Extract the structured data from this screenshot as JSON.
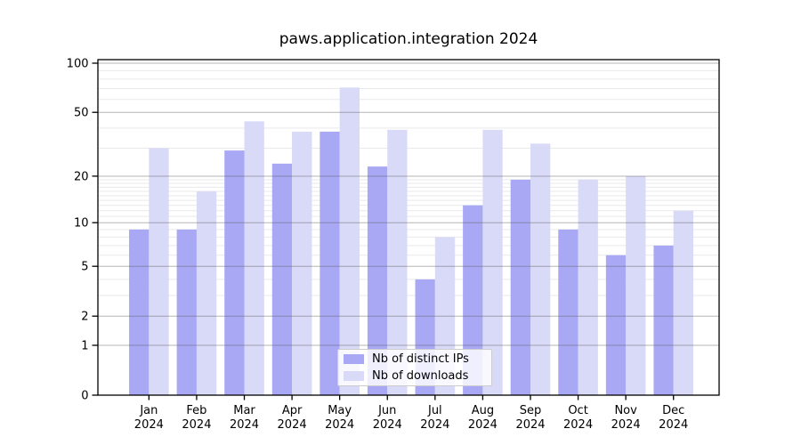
{
  "chart_data": {
    "type": "bar",
    "title": "paws.application.integration 2024",
    "categories": [
      "Jan",
      "Feb",
      "Mar",
      "Apr",
      "May",
      "Jun",
      "Jul",
      "Aug",
      "Sep",
      "Oct",
      "Nov",
      "Dec"
    ],
    "x_tick_year": "2024",
    "series": [
      {
        "name": "Nb of distinct IPs",
        "color": "#a8a8f4",
        "values": [
          9,
          9,
          29,
          24,
          38,
          23,
          4,
          13,
          19,
          9,
          6,
          7
        ]
      },
      {
        "name": "Nb of downloads",
        "color": "#d9d9f8",
        "values": [
          30,
          16,
          44,
          38,
          71,
          39,
          8,
          39,
          32,
          19,
          20,
          12
        ]
      }
    ],
    "y_axis": {
      "scale": "log10(1+value)",
      "tick_values": [
        0,
        1,
        2,
        5,
        10,
        20,
        50,
        100
      ],
      "tick_labels": [
        "0",
        "1",
        "2",
        "5",
        "10",
        "20",
        "50",
        "100"
      ],
      "minor_gridlines": [
        3,
        4,
        6,
        7,
        8,
        9,
        11,
        12,
        13,
        14,
        15,
        16,
        17,
        18,
        19,
        30,
        40,
        60,
        70,
        80,
        90
      ],
      "range": [
        0,
        106
      ]
    },
    "grid": "horizontal",
    "legend": {
      "position": "inside-bottom-center",
      "items": [
        "Nb of distinct IPs",
        "Nb of downloads"
      ]
    },
    "colors": {
      "bar_distinct_ips": "#a8a8f4",
      "bar_downloads": "#d9d9f8",
      "major_grid": "#bdbdbd",
      "minor_grid": "#e9e9e9",
      "axis": "#000000",
      "background": "#ffffff"
    }
  }
}
